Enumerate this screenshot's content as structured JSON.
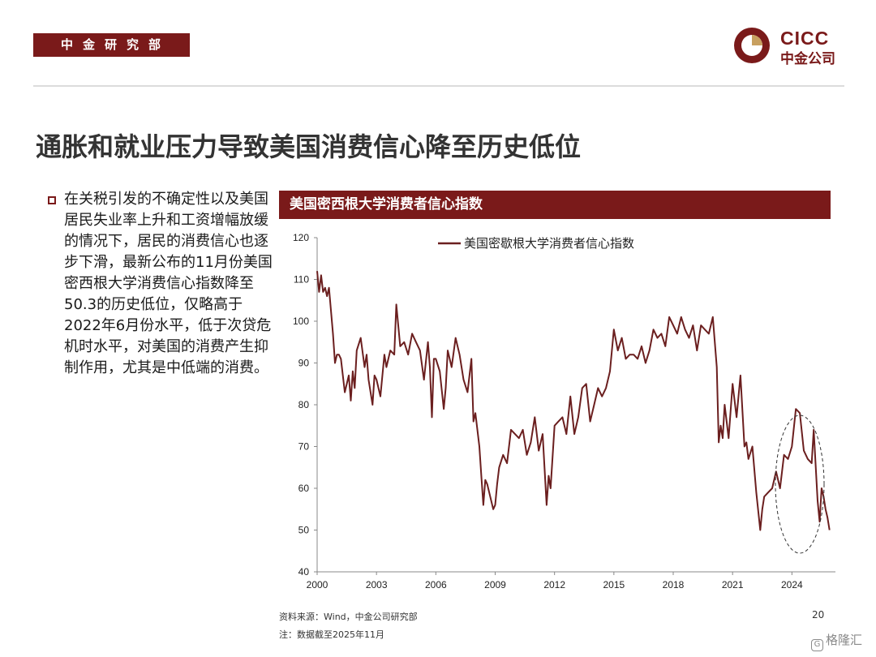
{
  "header": {
    "department": "中金研究部",
    "logo_en": "CICC",
    "logo_cn": "中金公司"
  },
  "slide_title": "通胀和就业压力导致美国消费信心降至历史低位",
  "body_text": "在关税引发的不确定性以及美国居民失业率上升和工资增幅放缓的情况下，居民的消费信心也逐步下滑，最新公布的11月份美国密西根大学消费信心指数降至50.3的历史低位，仅略高于2022年6月份水平，低于次贷危机时水平，对美国的消费产生抑制作用，尤其是中低端的消费。",
  "chart_header": "美国密西根大学消费者信心指数",
  "footer": {
    "source": "资料来源：Wind，中金公司研究部",
    "note": "注：数据截至2025年11月",
    "page": "20",
    "watermark": "格隆汇"
  },
  "colors": {
    "brand": "#7a1a1a",
    "line": "#6b1f1f"
  },
  "chart_data": {
    "type": "line",
    "title": "",
    "xlabel": "",
    "ylabel": "",
    "xlim": [
      2000,
      2026.2
    ],
    "ylim": [
      40,
      120
    ],
    "yticks": [
      40,
      50,
      60,
      70,
      80,
      90,
      100,
      110,
      120
    ],
    "xticks": [
      2000,
      2003,
      2006,
      2009,
      2012,
      2015,
      2018,
      2021,
      2024
    ],
    "legend_position": "top",
    "grid": false,
    "annotation": "dashed ellipse around 2025 lows",
    "series": [
      {
        "name": "美国密歇根大学消费者信心指数",
        "x": [
          2000.0,
          2000.1,
          2000.2,
          2000.3,
          2000.4,
          2000.5,
          2000.6,
          2000.8,
          2000.9,
          2001.0,
          2001.1,
          2001.2,
          2001.4,
          2001.6,
          2001.7,
          2001.8,
          2001.9,
          2002.0,
          2002.2,
          2002.4,
          2002.5,
          2002.6,
          2002.8,
          2002.9,
          2003.0,
          2003.2,
          2003.4,
          2003.5,
          2003.7,
          2003.9,
          2004.0,
          2004.2,
          2004.4,
          2004.6,
          2004.8,
          2005.0,
          2005.2,
          2005.4,
          2005.6,
          2005.7,
          2005.8,
          2005.9,
          2006.0,
          2006.2,
          2006.4,
          2006.5,
          2006.6,
          2006.8,
          2007.0,
          2007.2,
          2007.4,
          2007.6,
          2007.8,
          2007.9,
          2008.0,
          2008.2,
          2008.3,
          2008.4,
          2008.5,
          2008.6,
          2008.8,
          2008.9,
          2009.0,
          2009.1,
          2009.2,
          2009.4,
          2009.6,
          2009.8,
          2010.0,
          2010.2,
          2010.4,
          2010.6,
          2010.8,
          2011.0,
          2011.2,
          2011.4,
          2011.6,
          2011.7,
          2011.8,
          2012.0,
          2012.2,
          2012.4,
          2012.6,
          2012.8,
          2013.0,
          2013.2,
          2013.4,
          2013.6,
          2013.8,
          2014.0,
          2014.2,
          2014.4,
          2014.6,
          2014.8,
          2015.0,
          2015.2,
          2015.4,
          2015.6,
          2015.8,
          2016.0,
          2016.2,
          2016.4,
          2016.6,
          2016.8,
          2017.0,
          2017.2,
          2017.4,
          2017.6,
          2017.8,
          2018.0,
          2018.2,
          2018.4,
          2018.6,
          2018.8,
          2019.0,
          2019.2,
          2019.4,
          2019.6,
          2019.8,
          2020.0,
          2020.2,
          2020.3,
          2020.4,
          2020.5,
          2020.6,
          2020.8,
          2021.0,
          2021.2,
          2021.4,
          2021.6,
          2021.7,
          2021.8,
          2022.0,
          2022.2,
          2022.4,
          2022.5,
          2022.6,
          2022.8,
          2023.0,
          2023.2,
          2023.4,
          2023.6,
          2023.8,
          2024.0,
          2024.2,
          2024.4,
          2024.6,
          2024.8,
          2025.0,
          2025.1,
          2025.3,
          2025.4,
          2025.5,
          2025.6,
          2025.7,
          2025.8,
          2025.9
        ],
        "values": [
          112,
          107,
          111,
          107,
          108,
          106,
          108,
          97,
          90,
          92,
          92,
          91,
          83,
          87,
          81,
          88,
          84,
          93,
          96,
          89,
          92,
          86,
          80,
          87,
          86,
          82,
          92,
          89,
          93,
          92,
          104,
          94,
          95,
          92,
          97,
          95,
          93,
          86,
          95,
          89,
          77,
          91,
          91,
          88,
          79,
          84,
          93,
          89,
          96,
          92,
          86,
          83,
          91,
          76,
          78,
          70,
          63,
          56,
          62,
          61,
          57,
          55,
          56,
          61,
          65,
          68,
          66,
          74,
          73,
          72,
          74,
          68,
          71,
          77,
          69,
          73,
          56,
          63,
          60,
          75,
          76,
          77,
          73,
          82,
          73,
          77,
          84,
          85,
          76,
          80,
          84,
          82,
          84,
          88,
          98,
          93,
          96,
          91,
          92,
          92,
          91,
          94,
          90,
          93,
          98,
          96,
          97,
          94,
          101,
          99,
          97,
          101,
          98,
          96,
          99,
          93,
          99,
          98,
          97,
          101,
          89,
          71,
          75,
          72,
          80,
          72,
          85,
          77,
          87,
          70,
          71,
          67,
          70,
          59,
          50,
          55,
          58,
          59,
          60,
          64,
          60,
          68,
          67,
          70,
          79,
          78,
          69,
          67,
          66,
          74,
          57,
          52,
          60,
          58,
          55,
          53,
          50
        ]
      }
    ]
  }
}
